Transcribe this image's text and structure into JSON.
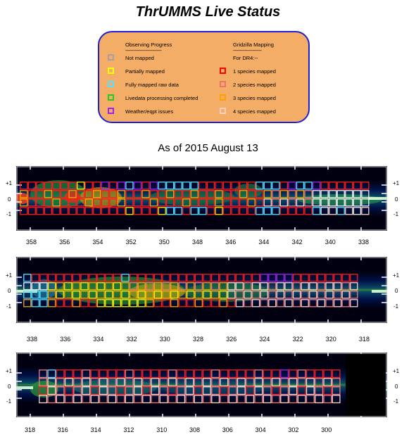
{
  "title": "ThrUMMS Live Status",
  "legend": {
    "col1_header": "Observing Progress",
    "col1_dashes": "----------------------------",
    "col2_header": "Gridzilla Mapping",
    "col2_dashes": "----------------------",
    "col2_sub": "For DR4:--",
    "progress_items": [
      {
        "label": "Not mapped",
        "color": "#a8a0a0"
      },
      {
        "label": "Partially mapped",
        "color": "#ffff00"
      },
      {
        "label": "Fully mapped raw data",
        "color": "#55e0ff"
      },
      {
        "label": "Livedata processing completed",
        "color": "#22cc22"
      },
      {
        "label": "Weather/eqpt issues",
        "color": "#a020f0"
      }
    ],
    "mapping_items": [
      {
        "label": "1 species mapped",
        "color": "#ff0000"
      },
      {
        "label": "2 species mapped",
        "color": "#f07070"
      },
      {
        "label": "3 species mapped",
        "color": "#ffa000"
      },
      {
        "label": "4 species mapped",
        "color": "#ffd0c0"
      }
    ]
  },
  "as_of": "As of 2015 August 13",
  "panels": [
    {
      "x_ticks": [
        "358",
        "356",
        "354",
        "352",
        "350",
        "348",
        "346",
        "344",
        "342",
        "340",
        "338"
      ],
      "y_ticks": [
        "+1",
        "0",
        "-1"
      ]
    },
    {
      "x_ticks": [
        "338",
        "336",
        "334",
        "332",
        "330",
        "328",
        "326",
        "324",
        "322",
        "320",
        "318"
      ],
      "y_ticks": [
        "+1",
        "0",
        "-1"
      ]
    },
    {
      "x_ticks": [
        "318",
        "316",
        "314",
        "312",
        "310",
        "308",
        "306",
        "304",
        "302",
        "300"
      ],
      "y_ticks": [
        "+1",
        "0",
        "-1"
      ]
    }
  ]
}
